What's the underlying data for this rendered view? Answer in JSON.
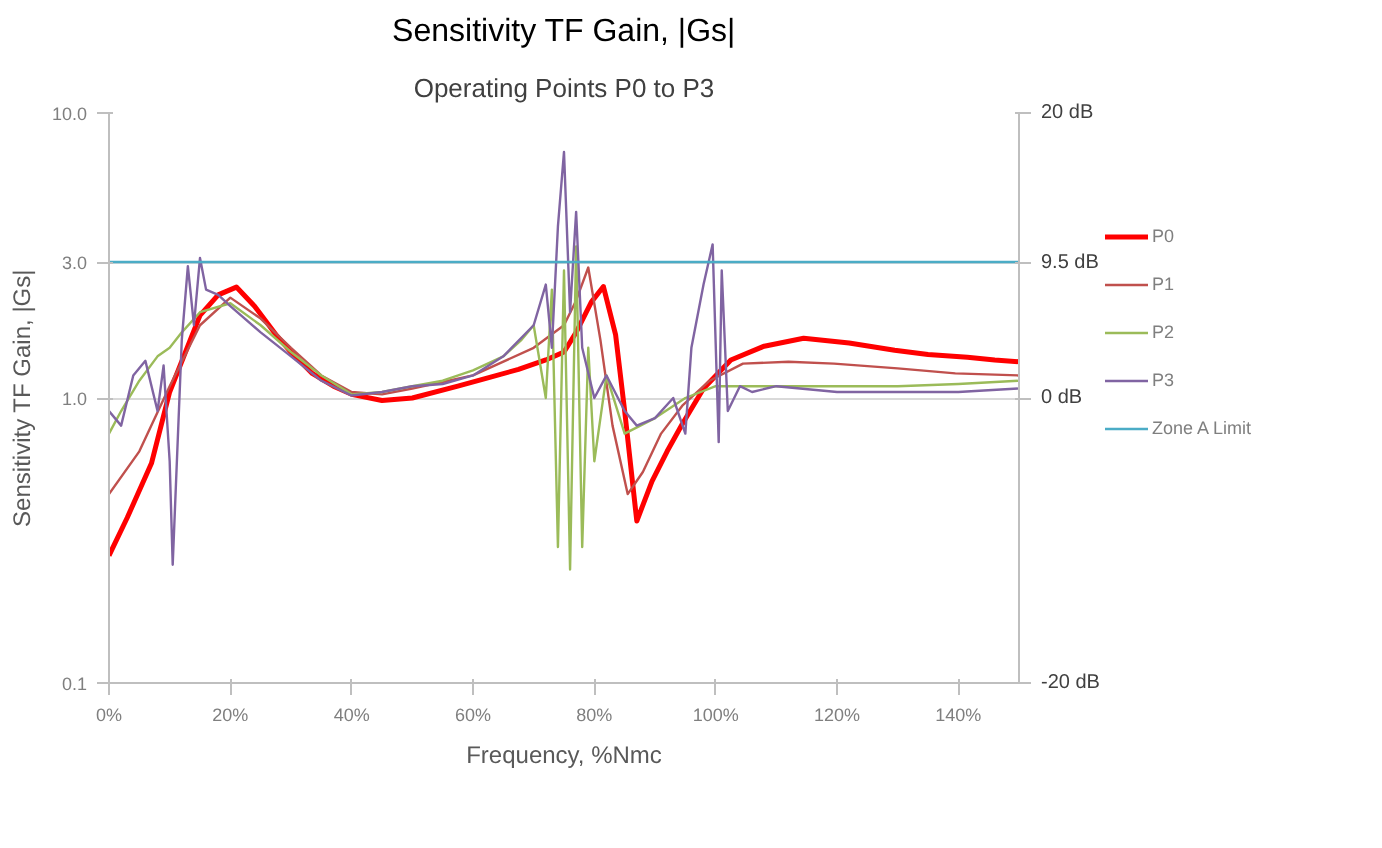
{
  "chart_data": {
    "type": "line",
    "title": "Sensitivity TF Gain, |Gs|",
    "subtitle": "Operating Points P0 to P3",
    "xlabel": "Frequency, %Nmc",
    "ylabel": "Sensitivity TF Gain, |Gs|",
    "xlim": [
      0,
      150
    ],
    "xticks": [
      {
        "value": 0,
        "label": "0%"
      },
      {
        "value": 20,
        "label": "20%"
      },
      {
        "value": 40,
        "label": "40%"
      },
      {
        "value": 60,
        "label": "60%"
      },
      {
        "value": 80,
        "label": "80%"
      },
      {
        "value": 100,
        "label": "100%"
      },
      {
        "value": 120,
        "label": "120%"
      },
      {
        "value": 140,
        "label": "140%"
      }
    ],
    "ylim": [
      0.1,
      10
    ],
    "yticks": [
      {
        "value": 0.1,
        "label": "0.1"
      },
      {
        "value": 1,
        "label": "1.0"
      },
      {
        "value": 3,
        "label": "3.0"
      },
      {
        "value": 10,
        "label": "10.0"
      }
    ],
    "y2lim": [
      -20,
      20
    ],
    "y2ticks": [
      {
        "value": -20,
        "label": "-20 dB"
      },
      {
        "value": 0,
        "label": "0 dB"
      },
      {
        "value": 9.5,
        "label": "9.5 dB"
      },
      {
        "value": 20,
        "label": "20 dB"
      }
    ],
    "log": "y",
    "grid": "y",
    "legend": "right",
    "line_style": "solid",
    "series": [
      {
        "name": "P0",
        "color": "#ff0000",
        "x": [
          0,
          3,
          7,
          10,
          15,
          18,
          21,
          24,
          27.5,
          30,
          33.5,
          37,
          40,
          45,
          50,
          57.5,
          62,
          67.5,
          72,
          75,
          77,
          79.5,
          81.5,
          83.5,
          85,
          87,
          89.5,
          92,
          94.5,
          98,
          102.5,
          108,
          114.5,
          122,
          129.5,
          135,
          141.5,
          146,
          150
        ],
        "values": [
          0.28,
          0.38,
          0.59,
          1.05,
          1.95,
          2.3,
          2.45,
          2.1,
          1.67,
          1.45,
          1.22,
          1.1,
          1.03,
          0.98,
          1.0,
          1.1,
          1.17,
          1.26,
          1.36,
          1.45,
          1.7,
          2.17,
          2.46,
          1.67,
          0.9,
          0.37,
          0.51,
          0.65,
          0.81,
          1.08,
          1.36,
          1.52,
          1.62,
          1.56,
          1.47,
          1.42,
          1.39,
          1.36,
          1.34
        ]
      },
      {
        "name": "P1",
        "color": "#c0504d",
        "x": [
          0,
          5,
          10,
          15,
          20,
          25,
          30,
          35,
          40,
          45,
          50,
          60,
          70,
          75,
          77,
          79,
          81,
          83,
          85.5,
          88,
          91,
          94.5,
          99,
          104.5,
          112,
          119.5,
          130,
          139.5,
          150
        ],
        "values": [
          0.46,
          0.65,
          1.1,
          1.8,
          2.25,
          1.9,
          1.5,
          1.2,
          1.05,
          1.03,
          1.08,
          1.2,
          1.5,
          1.8,
          2.2,
          2.87,
          1.6,
          0.8,
          0.46,
          0.55,
          0.75,
          0.94,
          1.15,
          1.32,
          1.34,
          1.32,
          1.27,
          1.22,
          1.2
        ]
      },
      {
        "name": "P2",
        "color": "#9bbb59",
        "x": [
          0,
          2,
          5,
          8,
          10,
          12,
          15,
          20,
          25,
          30,
          35,
          40,
          45,
          50,
          55,
          60,
          65,
          68,
          70,
          72,
          73,
          74,
          75,
          76,
          77,
          78,
          79,
          80,
          82,
          85,
          90,
          95,
          100,
          110,
          120,
          130,
          140,
          150
        ],
        "values": [
          0.75,
          0.9,
          1.15,
          1.4,
          1.5,
          1.7,
          2.0,
          2.15,
          1.8,
          1.45,
          1.2,
          1.03,
          1.05,
          1.1,
          1.15,
          1.25,
          1.4,
          1.6,
          1.8,
          1.0,
          2.4,
          0.3,
          2.8,
          0.25,
          3.4,
          0.3,
          1.5,
          0.6,
          1.2,
          0.75,
          0.85,
          1.0,
          1.1,
          1.1,
          1.1,
          1.1,
          1.12,
          1.15
        ]
      },
      {
        "name": "P3",
        "color": "#8064a2",
        "x": [
          0,
          2,
          4,
          6,
          8,
          9,
          10,
          10.5,
          12,
          13,
          14,
          15,
          16,
          18,
          20,
          25,
          30,
          35,
          40,
          45,
          50,
          55,
          60,
          65,
          70,
          72,
          73,
          74,
          75,
          76,
          77,
          78,
          80,
          82,
          85,
          87,
          90,
          93,
          95,
          96,
          98,
          99.5,
          100.5,
          101,
          102,
          104,
          106,
          110,
          120,
          130,
          140,
          150
        ],
        "values": [
          0.9,
          0.8,
          1.2,
          1.35,
          0.9,
          1.3,
          0.6,
          0.26,
          1.6,
          2.9,
          1.8,
          3.1,
          2.4,
          2.3,
          2.1,
          1.7,
          1.4,
          1.15,
          1.02,
          1.05,
          1.1,
          1.12,
          1.2,
          1.4,
          1.8,
          2.5,
          1.5,
          4.0,
          7.3,
          2.0,
          4.5,
          1.5,
          1.0,
          1.2,
          0.9,
          0.8,
          0.85,
          1.0,
          0.75,
          1.5,
          2.5,
          3.46,
          0.7,
          2.8,
          0.9,
          1.1,
          1.05,
          1.1,
          1.05,
          1.05,
          1.05,
          1.08
        ]
      },
      {
        "name": "Zone A Limit",
        "color": "#4bacc6",
        "x": [
          0,
          150
        ],
        "values": [
          3,
          3
        ]
      }
    ]
  }
}
